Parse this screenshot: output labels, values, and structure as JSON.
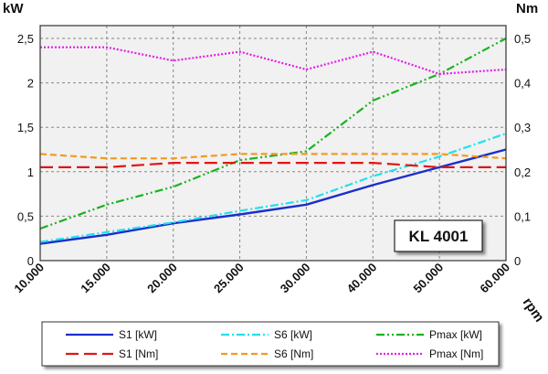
{
  "chart_data": {
    "type": "line",
    "model_label": "KL 4001",
    "y_left_label": "kW",
    "y_right_label": "Nm",
    "x_label": "rpm",
    "categories": [
      "10.000",
      "15.000",
      "20.000",
      "25.000",
      "30.000",
      "40.000",
      "50.000",
      "60.000"
    ],
    "y_left_ticks": [
      "0",
      "0,5",
      "1",
      "1,5",
      "2",
      "2,5"
    ],
    "y_right_ticks": [
      "0",
      "0,1",
      "0,2",
      "0,3",
      "0,4",
      "0,5"
    ],
    "ylim_left": [
      0,
      2.5
    ],
    "ylim_right": [
      0,
      0.5
    ],
    "grid": true,
    "legend_position": "bottom",
    "series": [
      {
        "name": "S1 [kW]",
        "axis": "left",
        "color": "#1a2fcc",
        "style": "solid",
        "values": [
          0.19,
          0.29,
          0.42,
          0.52,
          0.63,
          0.85,
          1.05,
          1.25
        ]
      },
      {
        "name": "S6 [kW]",
        "axis": "left",
        "color": "#22e0f0",
        "style": "dash-dot",
        "values": [
          0.21,
          0.32,
          0.43,
          0.56,
          0.68,
          0.95,
          1.17,
          1.43
        ]
      },
      {
        "name": "Pmax [kW]",
        "axis": "left",
        "color": "#19b31f",
        "style": "dash-dot-dot",
        "values": [
          0.36,
          0.63,
          0.83,
          1.13,
          1.23,
          1.8,
          2.1,
          2.5
        ]
      },
      {
        "name": "S1 [Nm]",
        "axis": "right",
        "color": "#e01616",
        "style": "long-dash",
        "values": [
          0.21,
          0.21,
          0.22,
          0.22,
          0.22,
          0.22,
          0.21,
          0.21
        ]
      },
      {
        "name": "S6 [Nm]",
        "axis": "right",
        "color": "#f39a1c",
        "style": "dash",
        "values": [
          0.24,
          0.23,
          0.23,
          0.24,
          0.24,
          0.24,
          0.24,
          0.23
        ]
      },
      {
        "name": "Pmax [Nm]",
        "axis": "right",
        "color": "#e41de4",
        "style": "dotted",
        "values": [
          0.48,
          0.48,
          0.45,
          0.47,
          0.43,
          0.47,
          0.42,
          0.43
        ]
      }
    ]
  }
}
